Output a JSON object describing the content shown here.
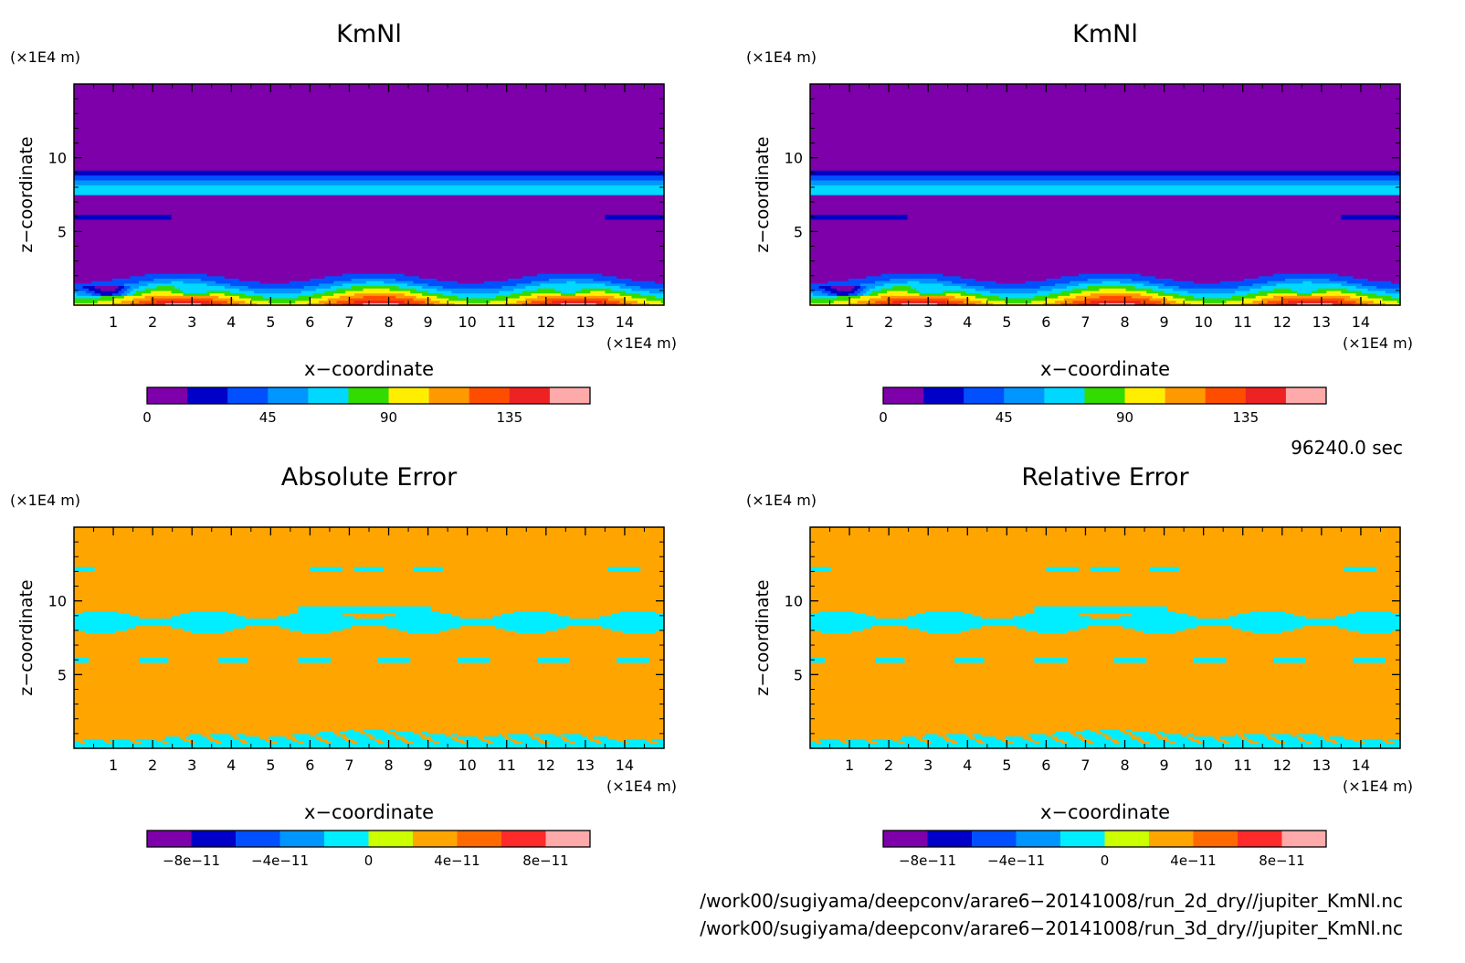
{
  "chart_data": [
    {
      "type": "heatmap",
      "title": "KmNl",
      "xlabel": "x−coordinate",
      "ylabel": "z−coordinate",
      "x_unit": "(×1E4 m)",
      "y_unit": "(×1E4 m)",
      "xlim": [
        0,
        15
      ],
      "ylim": [
        0,
        15
      ],
      "x_ticks": [
        1,
        2,
        3,
        4,
        5,
        6,
        7,
        8,
        9,
        10,
        11,
        12,
        13,
        14
      ],
      "y_ticks": [
        5,
        10
      ],
      "field": "kmnl",
      "colorbar": {
        "min": 0,
        "max": 165,
        "tick_values": [
          0,
          45,
          90,
          135
        ],
        "tick_labels": [
          "0",
          "45",
          "90",
          "135"
        ],
        "colors": [
          "#7e00aa",
          "#0000c8",
          "#0050ff",
          "#0096ff",
          "#00d8ff",
          "#32dc00",
          "#ffee00",
          "#ff9900",
          "#ff4d00",
          "#ee2222",
          "#ffaaaa"
        ]
      }
    },
    {
      "type": "heatmap",
      "title": "KmNl",
      "xlabel": "x−coordinate",
      "ylabel": "z−coordinate",
      "x_unit": "(×1E4 m)",
      "y_unit": "(×1E4 m)",
      "xlim": [
        0,
        15
      ],
      "ylim": [
        0,
        15
      ],
      "x_ticks": [
        1,
        2,
        3,
        4,
        5,
        6,
        7,
        8,
        9,
        10,
        11,
        12,
        13,
        14
      ],
      "y_ticks": [
        5,
        10
      ],
      "field": "kmnl",
      "colorbar": {
        "min": 0,
        "max": 165,
        "tick_values": [
          0,
          45,
          90,
          135
        ],
        "tick_labels": [
          "0",
          "45",
          "90",
          "135"
        ],
        "colors": [
          "#7e00aa",
          "#0000c8",
          "#0050ff",
          "#0096ff",
          "#00d8ff",
          "#32dc00",
          "#ffee00",
          "#ff9900",
          "#ff4d00",
          "#ee2222",
          "#ffaaaa"
        ]
      }
    },
    {
      "type": "heatmap",
      "title": "Absolute Error",
      "xlabel": "x−coordinate",
      "ylabel": "z−coordinate",
      "x_unit": "(×1E4 m)",
      "y_unit": "(×1E4 m)",
      "xlim": [
        0,
        15
      ],
      "ylim": [
        0,
        15
      ],
      "x_ticks": [
        1,
        2,
        3,
        4,
        5,
        6,
        7,
        8,
        9,
        10,
        11,
        12,
        13,
        14
      ],
      "y_ticks": [
        5,
        10
      ],
      "field": "error",
      "colorbar": {
        "min": -1e-10,
        "max": 1e-10,
        "tick_values": [
          -8e-11,
          -4e-11,
          0,
          4e-11,
          8e-11
        ],
        "tick_labels": [
          "−8e−11",
          "−4e−11",
          "0",
          "4e−11",
          "8e−11"
        ],
        "colors": [
          "#7e00aa",
          "#0000c8",
          "#0050ff",
          "#0096ff",
          "#00eeff",
          "#ccff00",
          "#ffa500",
          "#ff6a00",
          "#ff2a2a",
          "#ffaaaa"
        ]
      }
    },
    {
      "type": "heatmap",
      "title": "Relative Error",
      "xlabel": "x−coordinate",
      "ylabel": "z−coordinate",
      "x_unit": "(×1E4 m)",
      "y_unit": "(×1E4 m)",
      "xlim": [
        0,
        15
      ],
      "ylim": [
        0,
        15
      ],
      "x_ticks": [
        1,
        2,
        3,
        4,
        5,
        6,
        7,
        8,
        9,
        10,
        11,
        12,
        13,
        14
      ],
      "y_ticks": [
        5,
        10
      ],
      "field": "error",
      "colorbar": {
        "min": -1e-10,
        "max": 1e-10,
        "tick_values": [
          -8e-11,
          -4e-11,
          0,
          4e-11,
          8e-11
        ],
        "tick_labels": [
          "−8e−11",
          "−4e−11",
          "0",
          "4e−11",
          "8e−11"
        ],
        "colors": [
          "#7e00aa",
          "#0000c8",
          "#0050ff",
          "#0096ff",
          "#00eeff",
          "#ccff00",
          "#ffa500",
          "#ff6a00",
          "#ff2a2a",
          "#ffaaaa"
        ]
      }
    }
  ],
  "time_label": "96240.0 sec",
  "file_paths": [
    "/work00/sugiyama/deepconv/arare6−20141008/run_2d_dry//jupiter_KmNl.nc",
    "/work00/sugiyama/deepconv/arare6−20141008/run_3d_dry//jupiter_KmNl.nc"
  ]
}
